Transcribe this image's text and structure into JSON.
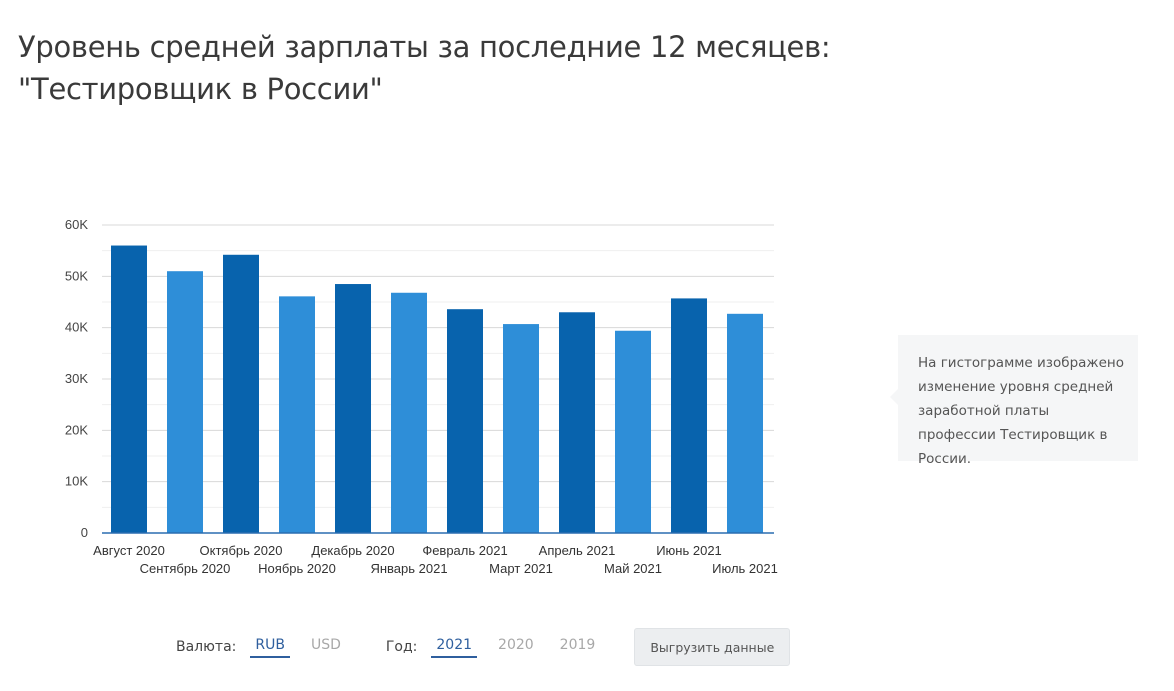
{
  "header": {
    "title_line1": "Уровень средней зарплаты за последние 12 месяцев:",
    "title_line2": "\"Тестировщик в России\""
  },
  "tooltip": {
    "text": "На гистограмме изображено изменение уровня средней заработной платы профессии Тестировщик в России."
  },
  "controls": {
    "currency_label": "Валюта:",
    "currencies": [
      "RUB",
      "USD"
    ],
    "selected_currency": "RUB",
    "year_label": "Год:",
    "years": [
      "2021",
      "2020",
      "2019"
    ],
    "selected_year": "2021",
    "export_label": "Выгрузить данные"
  },
  "colors": {
    "dark_bar": "#0863ad",
    "light_bar": "#2e8ed8",
    "axis": "#2a6db0",
    "grid": "#d8d8d8"
  },
  "chart_data": {
    "type": "bar",
    "title": "",
    "xlabel": "",
    "ylabel": "",
    "ylim": [
      0,
      60000
    ],
    "yticks": [
      0,
      10000,
      20000,
      30000,
      40000,
      50000,
      60000
    ],
    "ytick_labels": [
      "0",
      "10K",
      "20K",
      "30K",
      "40K",
      "50K",
      "60K"
    ],
    "categories": [
      "Август 2020",
      "Сентябрь 2020",
      "Октябрь 2020",
      "Ноябрь 2020",
      "Декабрь 2020",
      "Январь 2021",
      "Февраль 2021",
      "Март 2021",
      "Апрель 2021",
      "Май 2021",
      "Июнь 2021",
      "Июль 2021"
    ],
    "values": [
      56000,
      51000,
      54200,
      46100,
      48500,
      46800,
      43600,
      40700,
      43000,
      39400,
      45700,
      42700
    ],
    "grid": true
  }
}
